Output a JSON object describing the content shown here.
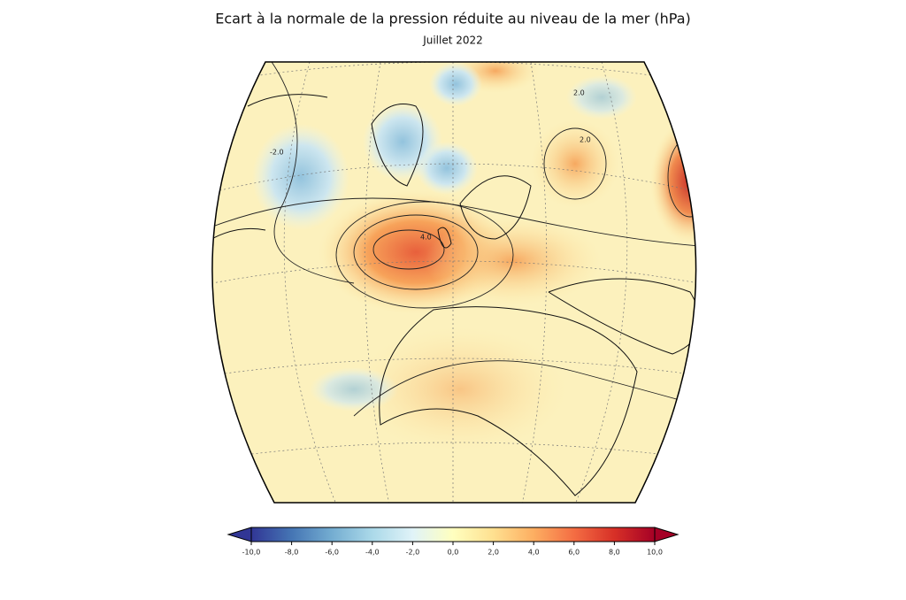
{
  "title": "Ecart à la normale de la pression réduite au niveau de la mer (hPa)",
  "subtitle": "Juillet 2022",
  "map": {
    "contour_labels": [
      "2.0",
      "4.0",
      "-2.0",
      "2.0"
    ]
  },
  "colorbar": {
    "lim": [
      -10,
      10
    ],
    "ticks": [
      {
        "value": -10,
        "label": "-10,0"
      },
      {
        "value": -8,
        "label": "-8,0"
      },
      {
        "value": -6,
        "label": "-6,0"
      },
      {
        "value": -4,
        "label": "-4,0"
      },
      {
        "value": -2,
        "label": "-2,0"
      },
      {
        "value": 0,
        "label": "0,0"
      },
      {
        "value": 2,
        "label": "2,0"
      },
      {
        "value": 4,
        "label": "4,0"
      },
      {
        "value": 6,
        "label": "6,0"
      },
      {
        "value": 8,
        "label": "8,0"
      },
      {
        "value": 10,
        "label": "10,0"
      }
    ],
    "colors": [
      "#313695",
      "#4575b4",
      "#74add1",
      "#abd9e9",
      "#e0f3f8",
      "#ffffbf",
      "#fee090",
      "#fdae61",
      "#f46d43",
      "#d73027",
      "#a50026"
    ]
  }
}
